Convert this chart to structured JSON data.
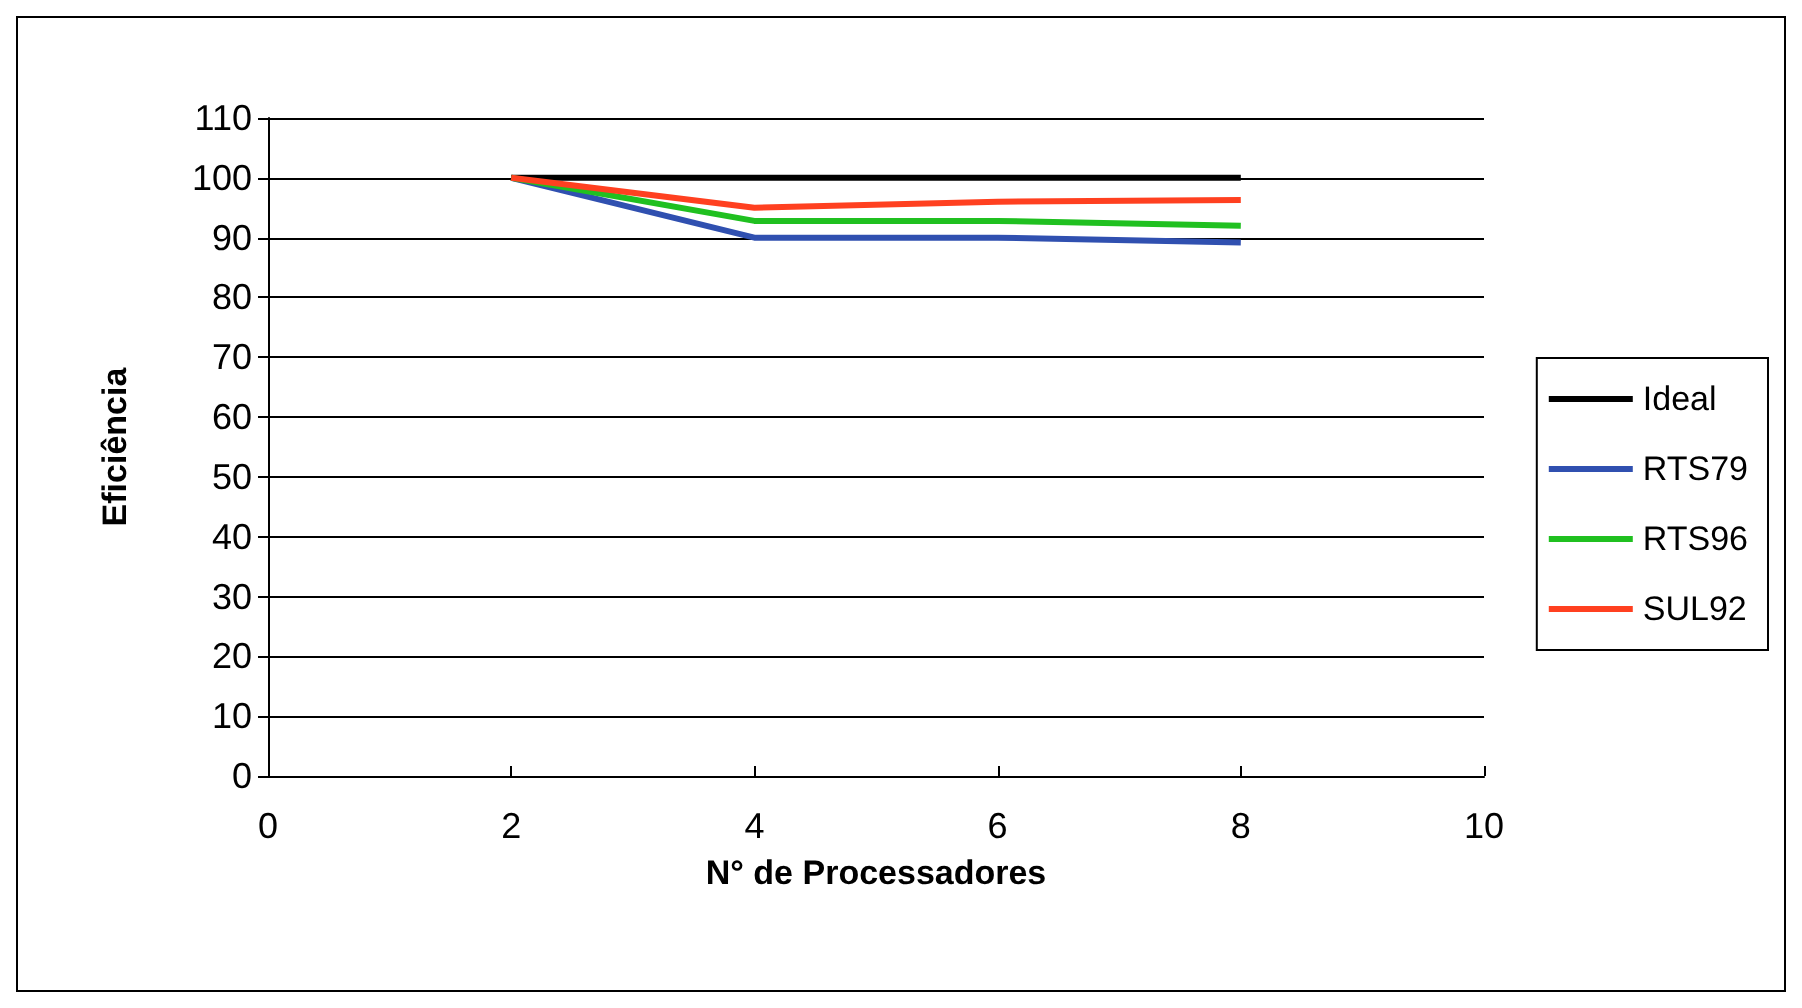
{
  "chart_data": {
    "type": "line",
    "xlabel": "N° de Processadores",
    "ylabel": "Eficiência",
    "x": [
      2,
      4,
      6,
      8
    ],
    "series": [
      {
        "name": "Ideal",
        "color": "#000000",
        "values": [
          100,
          100,
          100,
          100
        ]
      },
      {
        "name": "RTS79",
        "color": "#3050b0",
        "values": [
          100,
          90,
          90,
          89.2
        ]
      },
      {
        "name": "RTS96",
        "color": "#20c020",
        "values": [
          100,
          92.8,
          92.8,
          92
        ]
      },
      {
        "name": "SUL92",
        "color": "#ff4020",
        "values": [
          100,
          95,
          96,
          96.3
        ]
      }
    ],
    "xlim": [
      0,
      10
    ],
    "xticks": [
      0,
      2,
      4,
      6,
      8,
      10
    ],
    "ylim": [
      0,
      110
    ],
    "yticks": [
      0,
      10,
      20,
      30,
      40,
      50,
      60,
      70,
      80,
      90,
      100,
      110
    ],
    "grid": "y",
    "legend": "right",
    "marker": "none",
    "line_style": "solid"
  }
}
